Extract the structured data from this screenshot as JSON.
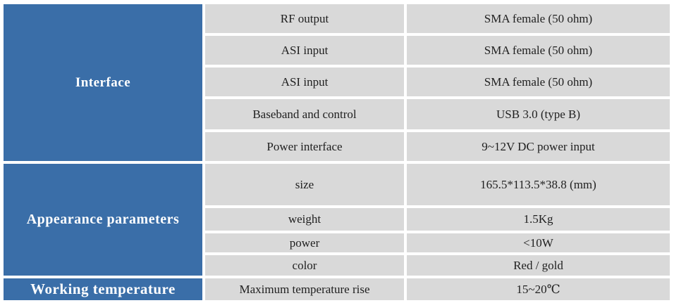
{
  "table": {
    "sections": [
      {
        "label": "Interface",
        "rows": [
          {
            "param": "RF output",
            "value": "SMA female (50 ohm)"
          },
          {
            "param": "ASI input",
            "value": "SMA female (50 ohm)"
          },
          {
            "param": "ASI input",
            "value": "SMA female (50 ohm)"
          },
          {
            "param": "Baseband and control",
            "value": "USB 3.0 (type B)"
          },
          {
            "param": "Power interface",
            "value": "9~12V DC power input"
          }
        ]
      },
      {
        "label": "Appearance parameters",
        "rows": [
          {
            "param": "size",
            "value": "165.5*113.5*38.8 (mm)"
          },
          {
            "param": "weight",
            "value": "1.5Kg"
          },
          {
            "param": "power",
            "value": "<10W"
          },
          {
            "param": "color",
            "value": "Red / gold"
          }
        ]
      },
      {
        "label": "Working temperature",
        "rows": [
          {
            "param": "Maximum temperature rise",
            "value": "15~20℃"
          }
        ]
      }
    ],
    "colors": {
      "section_background": "#3A6EA8",
      "section_text": "#FFFFFF",
      "cell_background": "#D9D9D9",
      "cell_text": "#1F1F1F",
      "page_background": "#FFFFFF"
    }
  }
}
